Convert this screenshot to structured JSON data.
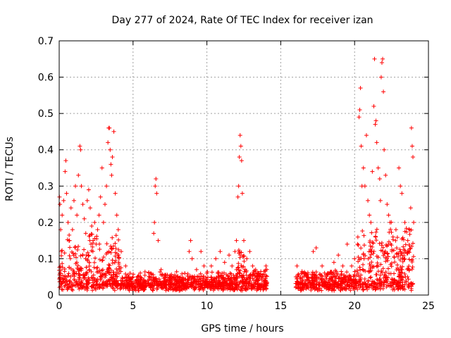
{
  "chart_data": {
    "type": "scatter",
    "title": "Day 277 of 2024, Rate Of TEC Index for receiver izan",
    "xlabel": "GPS time / hours",
    "ylabel": "ROTI / TECUs",
    "xlim": [
      0,
      25
    ],
    "ylim": [
      0,
      0.7
    ],
    "xticks": [
      0,
      5,
      10,
      15,
      20,
      25
    ],
    "xtick_labels": [
      "0",
      "5",
      "10",
      "15",
      "20",
      "25"
    ],
    "yticks": [
      0,
      0.1,
      0.2,
      0.3,
      0.4,
      0.5,
      0.6,
      0.7
    ],
    "ytick_labels": [
      "0",
      "0.1",
      "0.2",
      "0.3",
      "0.4",
      "0.5",
      "0.6",
      "0.7"
    ],
    "grid": true,
    "marker": "+",
    "color": "#ff0000",
    "data_gap_hours": [
      14.1,
      16.0
    ],
    "series": [
      {
        "name": "ROTI",
        "points": [
          [
            0.02,
            0.27
          ],
          [
            0.05,
            0.25
          ],
          [
            0.1,
            0.18
          ],
          [
            0.15,
            0.12
          ],
          [
            0.2,
            0.22
          ],
          [
            0.3,
            0.26
          ],
          [
            0.4,
            0.34
          ],
          [
            0.45,
            0.37
          ],
          [
            0.5,
            0.28
          ],
          [
            0.6,
            0.2
          ],
          [
            0.7,
            0.15
          ],
          [
            0.8,
            0.24
          ],
          [
            0.9,
            0.18
          ],
          [
            1.0,
            0.26
          ],
          [
            1.1,
            0.3
          ],
          [
            1.2,
            0.22
          ],
          [
            1.3,
            0.33
          ],
          [
            1.4,
            0.41
          ],
          [
            1.45,
            0.4
          ],
          [
            1.5,
            0.3
          ],
          [
            1.6,
            0.25
          ],
          [
            1.7,
            0.21
          ],
          [
            1.8,
            0.17
          ],
          [
            1.9,
            0.26
          ],
          [
            2.0,
            0.29
          ],
          [
            2.1,
            0.24
          ],
          [
            2.2,
            0.19
          ],
          [
            2.3,
            0.15
          ],
          [
            2.4,
            0.2
          ],
          [
            2.5,
            0.14
          ],
          [
            2.6,
            0.18
          ],
          [
            2.7,
            0.22
          ],
          [
            2.8,
            0.27
          ],
          [
            2.9,
            0.35
          ],
          [
            3.0,
            0.2
          ],
          [
            3.1,
            0.25
          ],
          [
            3.2,
            0.3
          ],
          [
            3.3,
            0.42
          ],
          [
            3.35,
            0.46
          ],
          [
            3.4,
            0.46
          ],
          [
            3.45,
            0.4
          ],
          [
            3.5,
            0.36
          ],
          [
            3.55,
            0.33
          ],
          [
            3.6,
            0.38
          ],
          [
            3.7,
            0.45
          ],
          [
            3.8,
            0.28
          ],
          [
            3.9,
            0.22
          ],
          [
            4.0,
            0.18
          ],
          [
            4.2,
            0.12
          ],
          [
            4.5,
            0.08
          ],
          [
            4.8,
            0.06
          ],
          [
            5.0,
            0.05
          ],
          [
            5.5,
            0.05
          ],
          [
            6.0,
            0.04
          ],
          [
            6.2,
            0.06
          ],
          [
            6.4,
            0.17
          ],
          [
            6.45,
            0.2
          ],
          [
            6.5,
            0.3
          ],
          [
            6.55,
            0.32
          ],
          [
            6.6,
            0.28
          ],
          [
            6.7,
            0.15
          ],
          [
            6.9,
            0.07
          ],
          [
            7.2,
            0.05
          ],
          [
            7.5,
            0.04
          ],
          [
            8.0,
            0.05
          ],
          [
            8.5,
            0.06
          ],
          [
            8.8,
            0.12
          ],
          [
            8.9,
            0.15
          ],
          [
            9.0,
            0.1
          ],
          [
            9.3,
            0.07
          ],
          [
            9.6,
            0.12
          ],
          [
            9.8,
            0.08
          ],
          [
            10.0,
            0.06
          ],
          [
            10.3,
            0.08
          ],
          [
            10.6,
            0.1
          ],
          [
            10.9,
            0.12
          ],
          [
            11.2,
            0.09
          ],
          [
            11.5,
            0.11
          ],
          [
            11.7,
            0.08
          ],
          [
            11.9,
            0.12
          ],
          [
            12.0,
            0.15
          ],
          [
            12.1,
            0.27
          ],
          [
            12.15,
            0.3
          ],
          [
            12.2,
            0.38
          ],
          [
            12.25,
            0.44
          ],
          [
            12.3,
            0.41
          ],
          [
            12.35,
            0.37
          ],
          [
            12.4,
            0.28
          ],
          [
            12.5,
            0.15
          ],
          [
            12.7,
            0.1
          ],
          [
            12.9,
            0.12
          ],
          [
            13.1,
            0.08
          ],
          [
            13.3,
            0.07
          ],
          [
            13.5,
            0.06
          ],
          [
            13.8,
            0.05
          ],
          [
            14.0,
            0.08
          ],
          [
            16.1,
            0.08
          ],
          [
            16.4,
            0.06
          ],
          [
            16.8,
            0.05
          ],
          [
            17.2,
            0.12
          ],
          [
            17.4,
            0.13
          ],
          [
            17.8,
            0.08
          ],
          [
            18.2,
            0.06
          ],
          [
            18.6,
            0.09
          ],
          [
            18.9,
            0.11
          ],
          [
            19.2,
            0.08
          ],
          [
            19.5,
            0.14
          ],
          [
            19.8,
            0.08
          ],
          [
            20.0,
            0.1
          ],
          [
            20.2,
            0.14
          ],
          [
            20.3,
            0.49
          ],
          [
            20.35,
            0.51
          ],
          [
            20.4,
            0.57
          ],
          [
            20.45,
            0.41
          ],
          [
            20.5,
            0.3
          ],
          [
            20.6,
            0.35
          ],
          [
            20.7,
            0.3
          ],
          [
            20.8,
            0.44
          ],
          [
            20.9,
            0.26
          ],
          [
            21.0,
            0.22
          ],
          [
            21.1,
            0.2
          ],
          [
            21.2,
            0.34
          ],
          [
            21.3,
            0.52
          ],
          [
            21.35,
            0.65
          ],
          [
            21.4,
            0.47
          ],
          [
            21.45,
            0.48
          ],
          [
            21.5,
            0.42
          ],
          [
            21.6,
            0.35
          ],
          [
            21.7,
            0.32
          ],
          [
            21.75,
            0.26
          ],
          [
            21.8,
            0.6
          ],
          [
            21.85,
            0.64
          ],
          [
            21.9,
            0.65
          ],
          [
            21.95,
            0.56
          ],
          [
            22.0,
            0.4
          ],
          [
            22.1,
            0.33
          ],
          [
            22.2,
            0.25
          ],
          [
            22.3,
            0.22
          ],
          [
            22.4,
            0.2
          ],
          [
            22.6,
            0.16
          ],
          [
            22.8,
            0.18
          ],
          [
            23.0,
            0.35
          ],
          [
            23.1,
            0.3
          ],
          [
            23.2,
            0.28
          ],
          [
            23.4,
            0.2
          ],
          [
            23.6,
            0.15
          ],
          [
            23.8,
            0.24
          ],
          [
            23.85,
            0.46
          ],
          [
            23.9,
            0.41
          ],
          [
            23.95,
            0.38
          ],
          [
            24.0,
            0.2
          ]
        ]
      }
    ]
  }
}
